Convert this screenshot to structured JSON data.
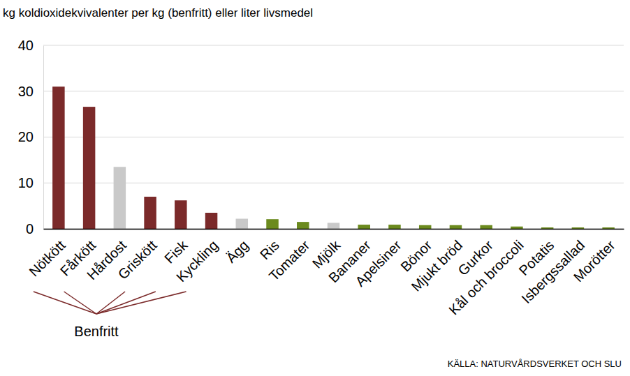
{
  "chart_data": {
    "type": "bar",
    "y_label": "kg koldioxidekvivalenter per kg (benfritt) eller liter livsmedel",
    "categories": [
      "Nötkött",
      "Fårkött",
      "Hårdost",
      "Griskött",
      "Fisk",
      "Kyckling",
      "Ägg",
      "Ris",
      "Tomater",
      "Mjölk",
      "Bananer",
      "Apelsiner",
      "Bönor",
      "Mjukt bröd",
      "Gurkor",
      "Kål och broccoli",
      "Potatis",
      "Isbergssallad",
      "Morötter"
    ],
    "values": [
      31,
      26.6,
      13.5,
      7,
      6.2,
      3.5,
      2.2,
      2.1,
      1.5,
      1.3,
      0.9,
      0.9,
      0.8,
      0.8,
      0.8,
      0.5,
      0.3,
      0.3,
      0.3
    ],
    "colors": [
      "#7b2a2a",
      "#7b2a2a",
      "#c9c9c9",
      "#7b2a2a",
      "#7b2a2a",
      "#7b2a2a",
      "#c9c9c9",
      "#6b8a1e",
      "#6b8a1e",
      "#c9c9c9",
      "#6b8a1e",
      "#6b8a1e",
      "#6b8a1e",
      "#6b8a1e",
      "#6b8a1e",
      "#6b8a1e",
      "#6b8a1e",
      "#6b8a1e",
      "#6b8a1e"
    ],
    "ylim": [
      0,
      40
    ],
    "yticks": [
      0,
      10,
      20,
      30,
      40
    ],
    "grid": true,
    "annotation": "Benfritt",
    "source": "KÄLLA: NATURVÅRDSVERKET OCH SLU"
  }
}
